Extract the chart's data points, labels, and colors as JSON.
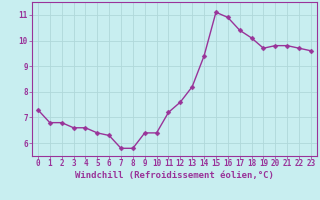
{
  "x": [
    0,
    1,
    2,
    3,
    4,
    5,
    6,
    7,
    8,
    9,
    10,
    11,
    12,
    13,
    14,
    15,
    16,
    17,
    18,
    19,
    20,
    21,
    22,
    23
  ],
  "y": [
    7.3,
    6.8,
    6.8,
    6.6,
    6.6,
    6.4,
    6.3,
    5.8,
    5.8,
    6.4,
    6.4,
    7.2,
    7.6,
    8.2,
    9.4,
    11.1,
    10.9,
    10.4,
    10.1,
    9.7,
    9.8,
    9.8,
    9.7,
    9.6
  ],
  "line_color": "#993399",
  "marker": "D",
  "markersize": 2.5,
  "linewidth": 1.0,
  "background_color": "#c8eef0",
  "grid_color": "#b0d8da",
  "xlabel": "Windchill (Refroidissement éolien,°C)",
  "ylim": [
    5.5,
    11.5
  ],
  "xlim": [
    -0.5,
    23.5
  ],
  "yticks": [
    6,
    7,
    8,
    9,
    10,
    11
  ],
  "xticks": [
    0,
    1,
    2,
    3,
    4,
    5,
    6,
    7,
    8,
    9,
    10,
    11,
    12,
    13,
    14,
    15,
    16,
    17,
    18,
    19,
    20,
    21,
    22,
    23
  ],
  "tick_fontsize": 5.5,
  "xlabel_fontsize": 6.5,
  "spine_color": "#993399"
}
